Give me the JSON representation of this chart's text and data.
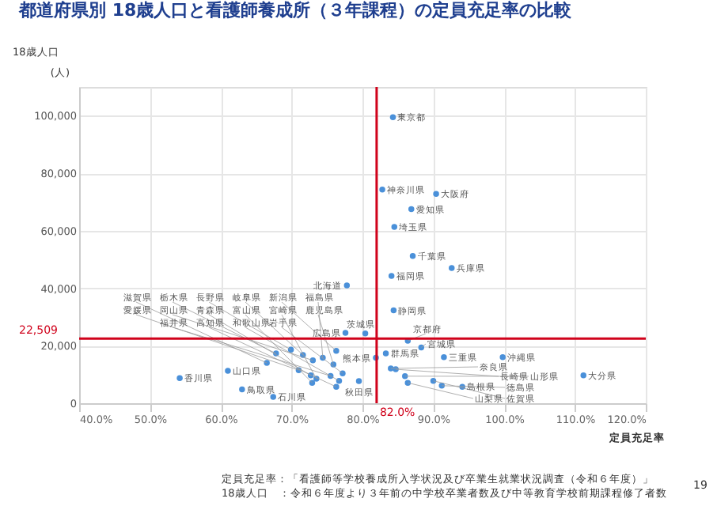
{
  "chart_data": {
    "type": "scatter",
    "title": "都道府県別 18歳人口と看護師養成所（３年課程）の定員充足率の比較",
    "xlabel": "定員充足率",
    "ylabel": "18歳人口",
    "x": [
      84.3,
      82.8,
      90.4,
      86.9,
      84.5,
      87.1,
      92.6,
      84.1,
      77.8,
      84.4,
      80.4,
      77.6,
      86.4,
      83.3,
      88.3,
      81.9,
      91.5,
      99.8,
      111.2,
      84.0,
      84.7,
      86.0,
      90.0,
      91.2,
      94.1,
      86.4,
      54.2,
      61.0,
      63.0,
      67.4,
      67.8,
      69.9,
      71.6,
      73.0,
      74.4,
      75.9,
      76.3,
      66.5,
      71.0,
      72.7,
      73.5,
      72.9,
      77.2,
      76.7,
      79.5,
      75.5,
      76.3
    ],
    "values": [
      99500,
      74300,
      72800,
      67500,
      61300,
      51200,
      47000,
      44300,
      41000,
      32300,
      24300,
      24500,
      21700,
      17300,
      19400,
      15800,
      16000,
      16000,
      9700,
      12100,
      11800,
      9400,
      7800,
      6100,
      5700,
      7100,
      8700,
      11300,
      4800,
      2200,
      17300,
      18600,
      16800,
      14900,
      15800,
      13500,
      18200,
      14000,
      11500,
      9700,
      8500,
      7100,
      10400,
      7800,
      7700,
      9500,
      5700
    ],
    "color": "#4a90d9",
    "marker": "circle",
    "xlim": [
      40,
      120
    ],
    "xticks": [
      {
        "value": 40,
        "label": "40.0%"
      },
      {
        "value": 50,
        "label": "50.0%"
      },
      {
        "value": 60,
        "label": "60.0%"
      },
      {
        "value": 70,
        "label": "70.0%"
      },
      {
        "value": 80,
        "label": "80.0%"
      },
      {
        "value": 90,
        "label": "90.0%"
      },
      {
        "value": 100,
        "label": "100.0%"
      },
      {
        "value": 110,
        "label": "110.0%"
      },
      {
        "value": 120,
        "label": "120.0%"
      }
    ],
    "ylim": [
      0,
      110000
    ],
    "yticks": [
      {
        "value": 0,
        "label": "0"
      },
      {
        "value": 20000,
        "label": "20,000"
      },
      {
        "value": 40000,
        "label": "40,000"
      },
      {
        "value": 60000,
        "label": "60,000"
      },
      {
        "value": 80000,
        "label": "80,000"
      },
      {
        "value": 100000,
        "label": "100,000"
      }
    ],
    "grid": true,
    "ref_lines": [
      {
        "axis": "y",
        "value": 22509,
        "label": "22,509",
        "color": "#d0021b"
      },
      {
        "axis": "x",
        "value": 82,
        "label": "82.0%",
        "color": "#d0021b"
      }
    ],
    "annotations": [
      {
        "text": "東京都",
        "x": 84.3,
        "y": 99500
      },
      {
        "text": "神奈川県",
        "x": 82.8,
        "y": 74300
      },
      {
        "text": "大阪府",
        "x": 90.4,
        "y": 72800
      },
      {
        "text": "愛知県",
        "x": 86.9,
        "y": 67500
      },
      {
        "text": "埼玉県",
        "x": 84.5,
        "y": 61300
      },
      {
        "text": "千葉県",
        "x": 87.1,
        "y": 51200
      },
      {
        "text": "兵庫県",
        "x": 92.6,
        "y": 47000
      },
      {
        "text": "福岡県",
        "x": 84.1,
        "y": 44300
      },
      {
        "text": "北海道",
        "x": 77.8,
        "y": 41000
      },
      {
        "text": "静岡県",
        "x": 84.4,
        "y": 32300
      },
      {
        "text": "茨城県",
        "x": 80.4,
        "y": 24300
      },
      {
        "text": "広島県",
        "x": 77.6,
        "y": 24500
      },
      {
        "text": "京都府",
        "x": 86.4,
        "y": 21700
      },
      {
        "text": "群馬県",
        "x": 83.3,
        "y": 17300
      },
      {
        "text": "宮城県",
        "x": 88.3,
        "y": 19400
      },
      {
        "text": "熊本県",
        "x": 81.9,
        "y": 15800
      },
      {
        "text": "三重県",
        "x": 91.5,
        "y": 16000
      },
      {
        "text": "沖縄県",
        "x": 99.8,
        "y": 16000
      },
      {
        "text": "大分県",
        "x": 111.2,
        "y": 9700
      },
      {
        "text": "奈良県",
        "x": 84.0,
        "y": 12100
      },
      {
        "text": "長崎県",
        "x": 84.7,
        "y": 11800
      },
      {
        "text": "山形県",
        "x": 86.0,
        "y": 9400
      },
      {
        "text": "佐賀県",
        "x": 90.0,
        "y": 7800
      },
      {
        "text": "徳島県",
        "x": 91.2,
        "y": 6100
      },
      {
        "text": "島根県",
        "x": 94.1,
        "y": 5700
      },
      {
        "text": "山梨県",
        "x": 86.4,
        "y": 7100
      },
      {
        "text": "香川県",
        "x": 54.2,
        "y": 8700
      },
      {
        "text": "山口県",
        "x": 61.0,
        "y": 11300
      },
      {
        "text": "鳥取県",
        "x": 63.0,
        "y": 4800
      },
      {
        "text": "石川県",
        "x": 67.4,
        "y": 2200
      },
      {
        "text": "栃木県",
        "x": 67.8,
        "y": 17300
      },
      {
        "text": "長野県",
        "x": 69.9,
        "y": 18600
      },
      {
        "text": "岐阜県",
        "x": 71.6,
        "y": 16800
      },
      {
        "text": "岡山県",
        "x": 73.0,
        "y": 14900
      },
      {
        "text": "福島県",
        "x": 74.4,
        "y": 15800
      },
      {
        "text": "鹿児島県",
        "x": 75.9,
        "y": 13500
      },
      {
        "text": "新潟県",
        "x": 76.3,
        "y": 18200
      },
      {
        "text": "滋賀県",
        "x": 66.5,
        "y": 14000
      },
      {
        "text": "愛媛県",
        "x": 71.0,
        "y": 11500
      },
      {
        "text": "青森県",
        "x": 72.7,
        "y": 9700
      },
      {
        "text": "宮崎県",
        "x": 73.5,
        "y": 8500
      },
      {
        "text": "富山県",
        "x": 72.9,
        "y": 7100
      },
      {
        "text": "岩手県",
        "x": 77.2,
        "y": 10400
      },
      {
        "text": "和歌山県",
        "x": 76.7,
        "y": 7800
      },
      {
        "text": "秋田県",
        "x": 79.5,
        "y": 7700
      },
      {
        "text": "福井県",
        "x": 75.5,
        "y": 9500
      },
      {
        "text": "高知県",
        "x": 76.3,
        "y": 5700
      },
      "(人)",
      "定員充足率：「看護師等学校養成所入学状況及び卒業生就業状況調査（令和６年度）」",
      "18歳人口　：令和６年度より３年前の中学校卒業者数及び中等教育学校前期課程修了者数",
      "19"
    ]
  }
}
